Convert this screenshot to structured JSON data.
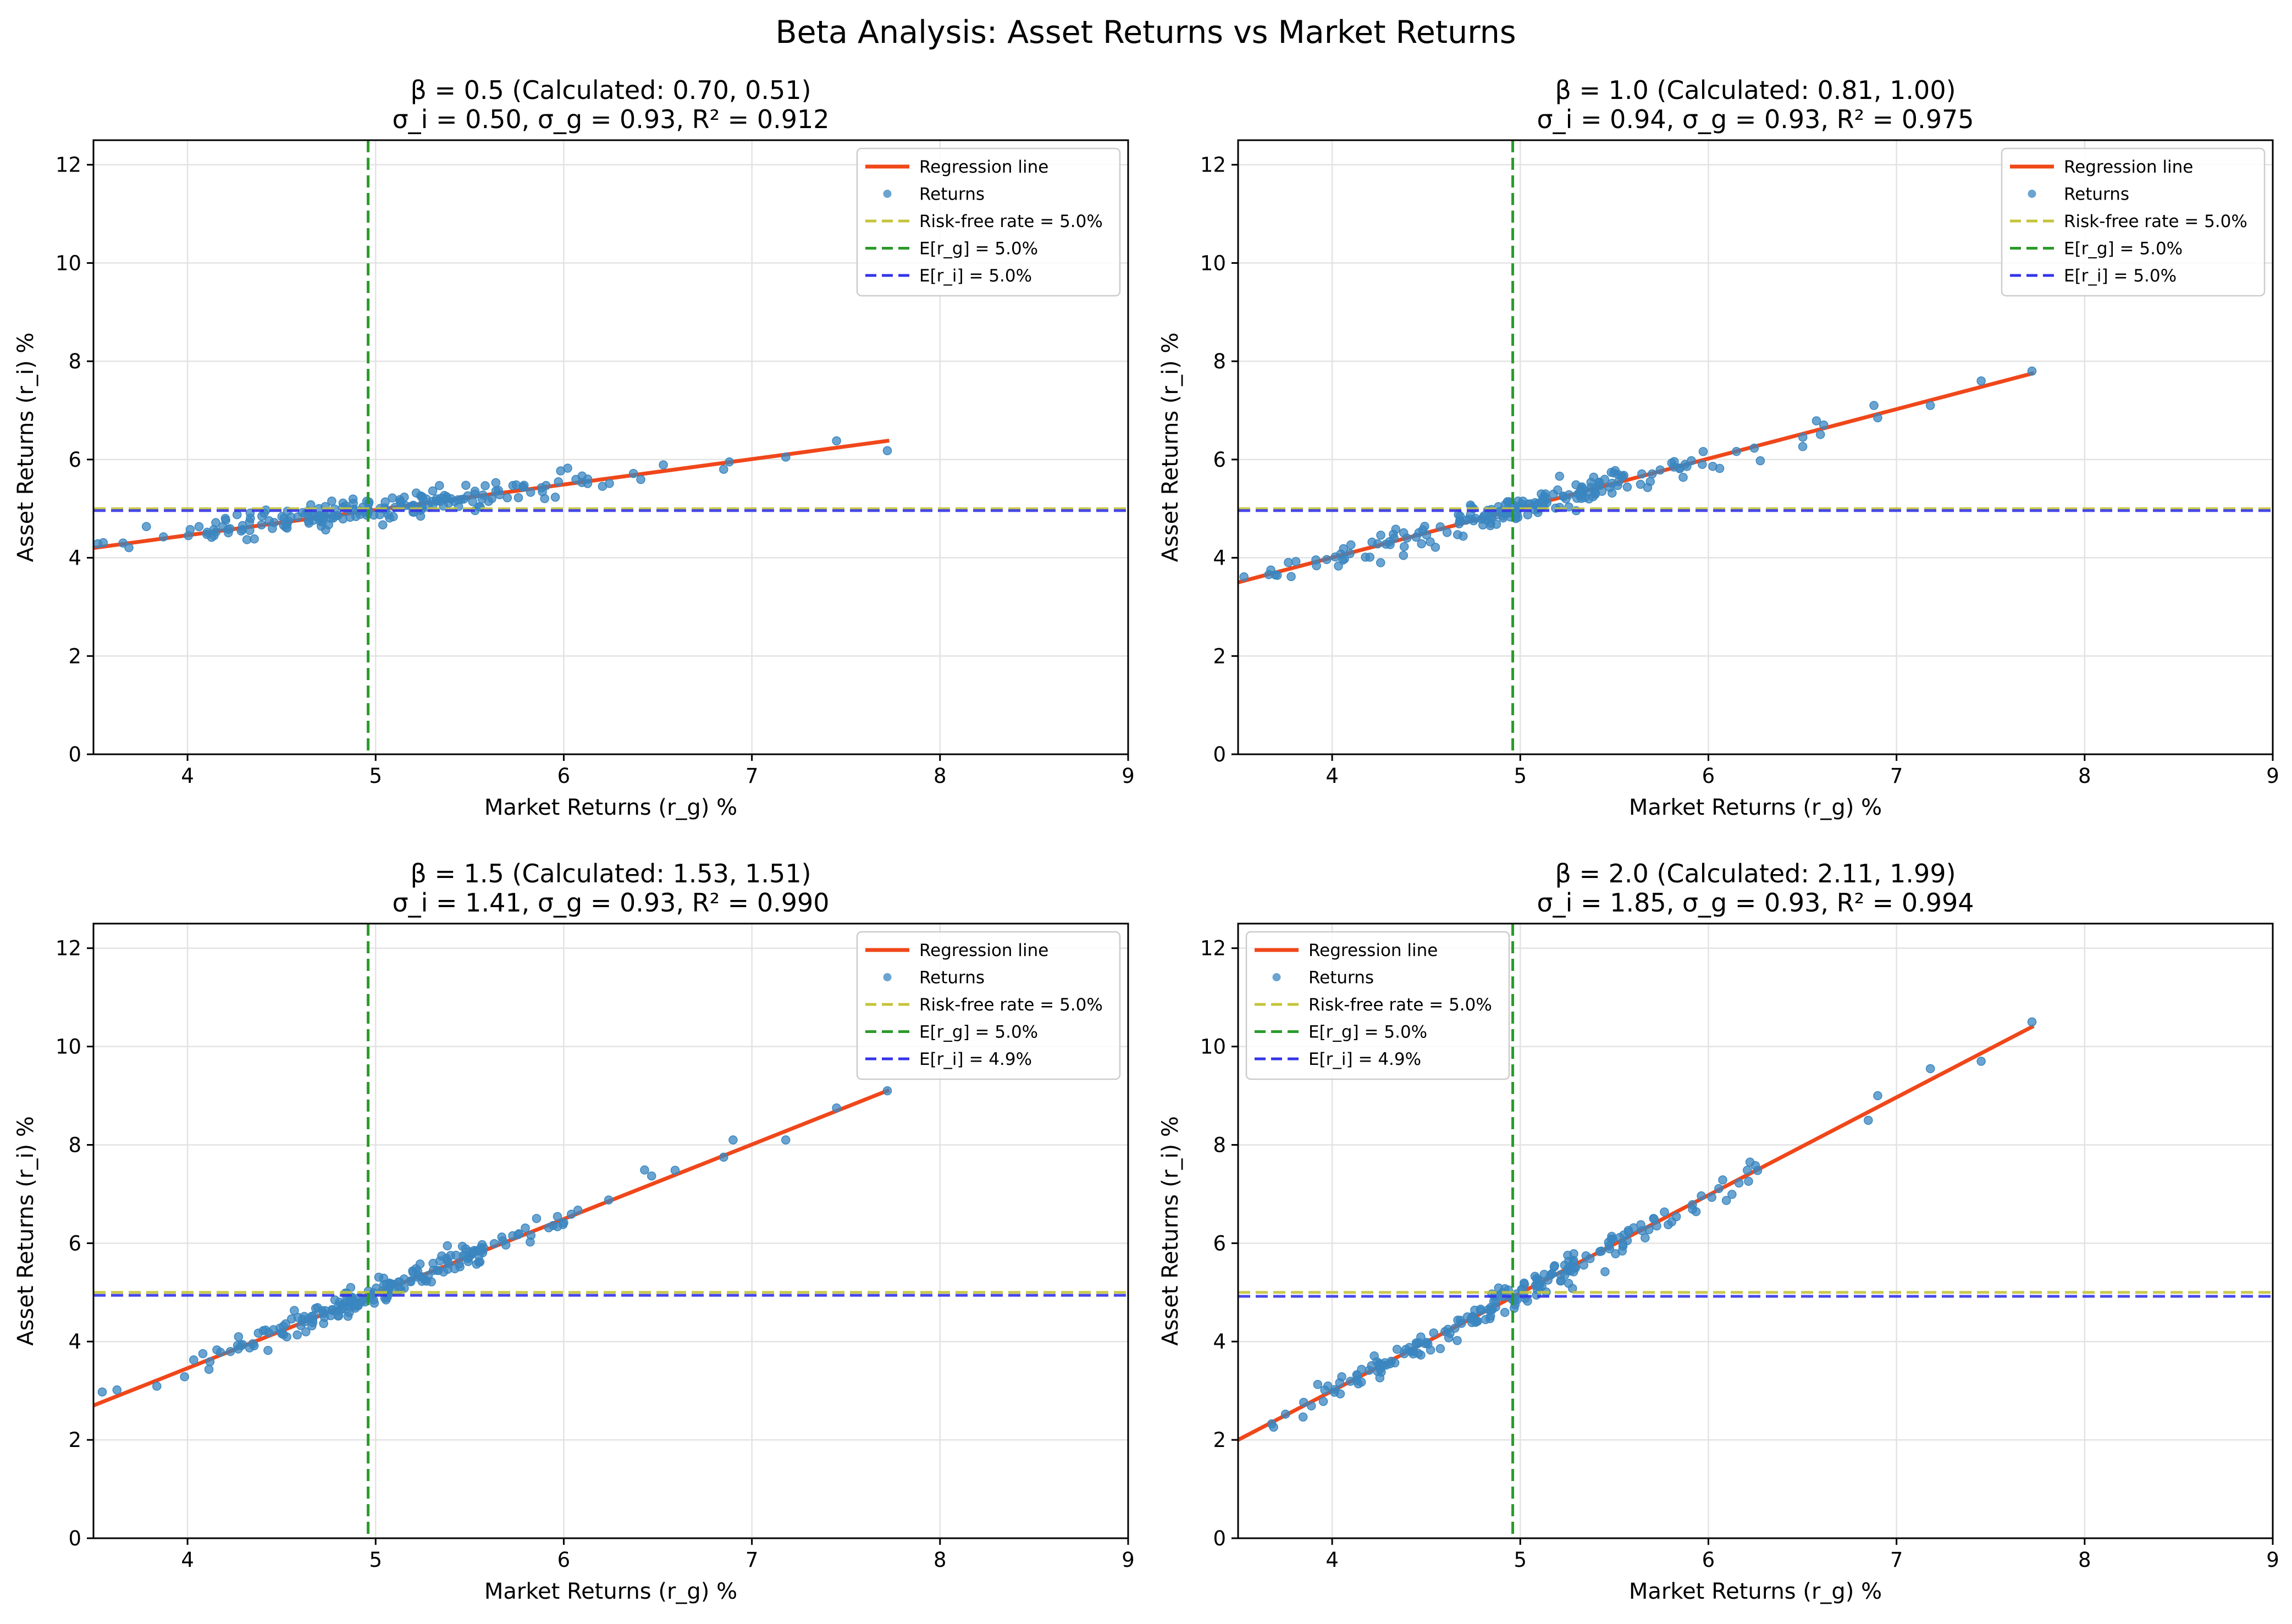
{
  "figure": {
    "title": "Beta Analysis: Asset Returns vs Market Returns"
  },
  "colors": {
    "regression": "#f0471a",
    "returns": "#3a86c0",
    "risk_free": "#c4c43a",
    "e_rg": "#2a9a2a",
    "e_ri": "#3434e8",
    "grid": "#e3e3e3",
    "axes": "#000000"
  },
  "chart_data": [
    {
      "type": "scatter",
      "title": "β = 0.5 (Calculated: 0.70, 0.51)",
      "subtitle": "σ_i = 0.50, σ_g = 0.93, R² = 0.912",
      "xlabel": "Market Returns (r_g) %",
      "ylabel": "Asset Returns (r_i) %",
      "xlim": [
        3.5,
        9
      ],
      "ylim": [
        0,
        12.5
      ],
      "xticks": [
        4,
        5,
        6,
        7,
        8,
        9
      ],
      "yticks": [
        0,
        2,
        4,
        6,
        8,
        10,
        12
      ],
      "grid": true,
      "legend_position": "upper right",
      "regression": {
        "label": "Regression line",
        "x": [
          3.5,
          7.72
        ],
        "y": [
          4.2,
          6.38
        ]
      },
      "scatter_label": "Returns",
      "scatter_points": {
        "slope": 0.51,
        "intercept": 2.45,
        "noise": 0.13,
        "outliers": [
          [
            7.45,
            6.38
          ],
          [
            7.72,
            6.18
          ],
          [
            7.18,
            6.05
          ],
          [
            6.85,
            5.8
          ],
          [
            6.88,
            5.95
          ]
        ]
      },
      "hlines": [
        {
          "label": "Risk-free rate = 5.0%",
          "y": 5.0,
          "color_key": "risk_free"
        },
        {
          "label": "E[r_i] = 5.0%",
          "y": 4.96,
          "color_key": "e_ri"
        }
      ],
      "vlines": [
        {
          "label": "E[r_g] = 5.0%",
          "x": 4.96,
          "color_key": "e_rg"
        }
      ],
      "legend": [
        "Regression line",
        "Returns",
        "Risk-free rate = 5.0%",
        "E[r_g] = 5.0%",
        "E[r_i] = 5.0%"
      ]
    },
    {
      "type": "scatter",
      "title": "β = 1.0 (Calculated: 0.81, 1.00)",
      "subtitle": "σ_i = 0.94, σ_g = 0.93, R² = 0.975",
      "xlabel": "Market Returns (r_g) %",
      "ylabel": "Asset Returns (r_i) %",
      "xlim": [
        3.5,
        9
      ],
      "ylim": [
        0,
        12.5
      ],
      "xticks": [
        4,
        5,
        6,
        7,
        8,
        9
      ],
      "yticks": [
        0,
        2,
        4,
        6,
        8,
        10,
        12
      ],
      "grid": true,
      "legend_position": "upper right",
      "regression": {
        "label": "Regression line",
        "x": [
          3.5,
          7.72
        ],
        "y": [
          3.5,
          7.75
        ]
      },
      "scatter_label": "Returns",
      "scatter_points": {
        "slope": 1.0,
        "intercept": 0.0,
        "noise": 0.14,
        "outliers": [
          [
            7.45,
            7.6
          ],
          [
            7.72,
            7.8
          ],
          [
            7.18,
            7.1
          ],
          [
            6.88,
            7.1
          ],
          [
            6.9,
            6.85
          ]
        ]
      },
      "hlines": [
        {
          "label": "Risk-free rate = 5.0%",
          "y": 5.0,
          "color_key": "risk_free"
        },
        {
          "label": "E[r_i] = 5.0%",
          "y": 4.96,
          "color_key": "e_ri"
        }
      ],
      "vlines": [
        {
          "label": "E[r_g] = 5.0%",
          "x": 4.96,
          "color_key": "e_rg"
        }
      ],
      "legend": [
        "Regression line",
        "Returns",
        "Risk-free rate = 5.0%",
        "E[r_g] = 5.0%",
        "E[r_i] = 5.0%"
      ]
    },
    {
      "type": "scatter",
      "title": "β = 1.5 (Calculated: 1.53, 1.51)",
      "subtitle": "σ_i = 1.41, σ_g = 0.93, R² = 0.990",
      "xlabel": "Market Returns (r_g) %",
      "ylabel": "Asset Returns (r_i) %",
      "xlim": [
        3.5,
        9
      ],
      "ylim": [
        0,
        12.5
      ],
      "xticks": [
        4,
        5,
        6,
        7,
        8,
        9
      ],
      "yticks": [
        0,
        2,
        4,
        6,
        8,
        10,
        12
      ],
      "grid": true,
      "legend_position": "upper right",
      "regression": {
        "label": "Regression line",
        "x": [
          3.5,
          7.72
        ],
        "y": [
          2.7,
          9.1
        ]
      },
      "scatter_label": "Returns",
      "scatter_points": {
        "slope": 1.51,
        "intercept": -2.55,
        "noise": 0.13,
        "outliers": [
          [
            7.45,
            8.75
          ],
          [
            7.72,
            9.1
          ],
          [
            7.18,
            8.1
          ],
          [
            6.9,
            8.1
          ],
          [
            6.85,
            7.75
          ]
        ]
      },
      "hlines": [
        {
          "label": "Risk-free rate = 5.0%",
          "y": 5.0,
          "color_key": "risk_free"
        },
        {
          "label": "E[r_i] = 4.9%",
          "y": 4.94,
          "color_key": "e_ri"
        }
      ],
      "vlines": [
        {
          "label": "E[r_g] = 5.0%",
          "x": 4.96,
          "color_key": "e_rg"
        }
      ],
      "legend": [
        "Regression line",
        "Returns",
        "Risk-free rate = 5.0%",
        "E[r_g] = 5.0%",
        "E[r_i] = 4.9%"
      ]
    },
    {
      "type": "scatter",
      "title": "β = 2.0 (Calculated: 2.11, 1.99)",
      "subtitle": "σ_i = 1.85, σ_g = 0.93, R² = 0.994",
      "xlabel": "Market Returns (r_g) %",
      "ylabel": "Asset Returns (r_i) %",
      "xlim": [
        3.5,
        9
      ],
      "ylim": [
        0,
        12.5
      ],
      "xticks": [
        4,
        5,
        6,
        7,
        8,
        9
      ],
      "yticks": [
        0,
        2,
        4,
        6,
        8,
        10,
        12
      ],
      "grid": true,
      "legend_position": "upper left",
      "regression": {
        "label": "Regression line",
        "x": [
          3.5,
          7.72
        ],
        "y": [
          2.0,
          10.4
        ]
      },
      "scatter_label": "Returns",
      "scatter_points": {
        "slope": 1.99,
        "intercept": -4.97,
        "noise": 0.14,
        "outliers": [
          [
            7.45,
            9.7
          ],
          [
            7.72,
            10.5
          ],
          [
            7.18,
            9.55
          ],
          [
            6.9,
            9.0
          ],
          [
            6.85,
            8.5
          ]
        ]
      },
      "hlines": [
        {
          "label": "Risk-free rate = 5.0%",
          "y": 5.0,
          "color_key": "risk_free"
        },
        {
          "label": "E[r_i] = 4.9%",
          "y": 4.92,
          "color_key": "e_ri"
        }
      ],
      "vlines": [
        {
          "label": "E[r_g] = 5.0%",
          "x": 4.96,
          "color_key": "e_rg"
        }
      ],
      "legend": [
        "Regression line",
        "Returns",
        "Risk-free rate = 5.0%",
        "E[r_g] = 5.0%",
        "E[r_i] = 4.9%"
      ]
    }
  ]
}
